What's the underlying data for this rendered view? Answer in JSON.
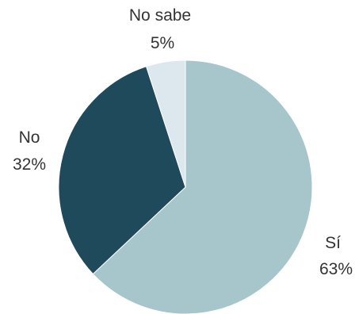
{
  "chart_data": {
    "type": "pie",
    "title": "",
    "start_angle_deg": 0,
    "direction": "clockwise",
    "legend": "none",
    "slices": [
      {
        "label": "Sí",
        "value": 63,
        "value_label": "63%",
        "color": "#a6c6cc"
      },
      {
        "label": "No",
        "value": 32,
        "value_label": "32%",
        "color": "#1e4a5c"
      },
      {
        "label": "No sabe",
        "value": 5,
        "value_label": "5%",
        "color": "#dde7ee"
      }
    ]
  }
}
